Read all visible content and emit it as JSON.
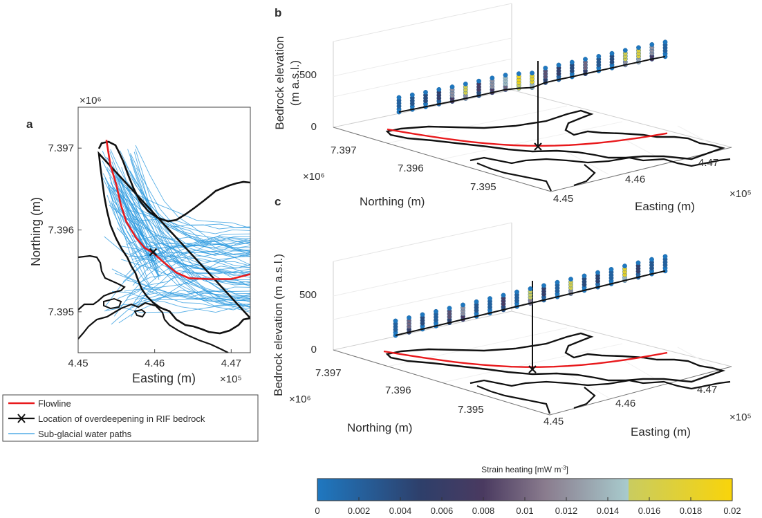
{
  "panels": {
    "a": "a",
    "b": "b",
    "c": "c"
  },
  "colors": {
    "flowline": "#e8191c",
    "outline": "#111111",
    "water": "#2e9be0",
    "grid": "#dcdcdc"
  },
  "chart_data": [
    {
      "panel": "a",
      "type": "map",
      "xlabel": "Easting (m)",
      "ylabel": "Northing (m)",
      "x_multiplier": "×10⁵",
      "y_multiplier": "×10⁶",
      "x_ticks": [
        "4.45",
        "4.46",
        "4.47"
      ],
      "y_ticks": [
        "7.397",
        "7.396",
        "7.395"
      ],
      "xlim": [
        4.45,
        4.4725
      ],
      "ylim": [
        7.3945,
        7.3975
      ],
      "flowline": {
        "x": [
          4.4537,
          4.4542,
          4.455,
          4.4556,
          4.4563,
          4.4576,
          4.4587,
          4.4598,
          4.461,
          4.4628,
          4.4645,
          4.467,
          4.47,
          4.4725
        ],
        "y": [
          7.3971,
          7.3968,
          7.39655,
          7.3963,
          7.3961,
          7.3959,
          7.39578,
          7.39572,
          7.39562,
          7.39548,
          7.39541,
          7.3954,
          7.3954,
          7.39546
        ]
      },
      "overdeepening": {
        "x": 4.4598,
        "y": 7.39573
      }
    },
    {
      "panel": "b",
      "type": "scatter3d",
      "zlabel": "Bedrock elevation\n(m a.s.l.)",
      "xlabel": "Easting (m)",
      "ylabel": "Northing (m)",
      "x_multiplier": "×10⁵",
      "y_multiplier": "×10⁶",
      "z_ticks": [
        "0",
        "500"
      ],
      "north_ticks": [
        "7.397",
        "7.396",
        "7.395"
      ],
      "east_ticks": [
        "4.45",
        "4.46",
        "4.47"
      ],
      "distance": [
        0,
        0.05,
        0.1,
        0.15,
        0.2,
        0.25,
        0.3,
        0.35,
        0.4,
        0.45,
        0.5,
        0.55,
        0.6,
        0.65,
        0.7,
        0.75,
        0.8,
        0.85,
        0.9,
        0.95,
        1.0
      ],
      "bedrock": [
        150,
        160,
        170,
        190,
        200,
        230,
        260,
        300,
        330,
        250,
        120,
        300,
        340,
        360,
        400,
        430,
        460,
        500,
        520,
        560,
        560
      ],
      "strain_heating": [
        0.002,
        0.003,
        0.004,
        0.006,
        0.012,
        0.016,
        0.008,
        0.012,
        0.014,
        0.019,
        0.018,
        0.009,
        0.006,
        0.004,
        0.01,
        0.003,
        0.004,
        0.016,
        0.017,
        0.012,
        0.002
      ]
    },
    {
      "panel": "c",
      "type": "scatter3d",
      "zlabel": "Bedrock elevation (m a.s.l.)",
      "xlabel": "Easting (m)",
      "ylabel": "Northing (m)",
      "x_multiplier": "×10⁵",
      "y_multiplier": "×10⁶",
      "z_ticks": [
        "0",
        "500"
      ],
      "north_ticks": [
        "7.397",
        "7.396",
        "7.395"
      ],
      "east_ticks": [
        "4.45",
        "4.46",
        "4.47"
      ],
      "distance": [
        0,
        0.05,
        0.1,
        0.15,
        0.2,
        0.25,
        0.3,
        0.35,
        0.4,
        0.45,
        0.5,
        0.55,
        0.6,
        0.65,
        0.7,
        0.75,
        0.8,
        0.85,
        0.9,
        0.95,
        1.0
      ],
      "bedrock": [
        150,
        165,
        180,
        200,
        220,
        240,
        260,
        285,
        305,
        330,
        350,
        370,
        390,
        410,
        430,
        460,
        480,
        510,
        530,
        555,
        560
      ],
      "strain_heating": [
        0.002,
        0.01,
        0.004,
        0.002,
        0.009,
        0.012,
        0.003,
        0.002,
        0.008,
        0.002,
        0.015,
        0.006,
        0.002,
        0.016,
        0.004,
        0.005,
        0.002,
        0.018,
        0.006,
        0.003,
        0.002
      ]
    },
    {
      "type": "colorbar",
      "title": "Strain heating [mW m",
      "title_exp": "-3",
      "title_end": "]",
      "ticks": [
        "0",
        "0.002",
        "0.004",
        "0.006",
        "0.008",
        "0.01",
        "0.012",
        "0.014",
        "0.016",
        "0.018",
        "0.02"
      ],
      "range": [
        0,
        0.02
      ]
    }
  ],
  "legend": {
    "flowline": "Flowline",
    "overdeepening": "Location of overdeepening in RIF bedrock",
    "water": "Sub-glacial water paths"
  }
}
